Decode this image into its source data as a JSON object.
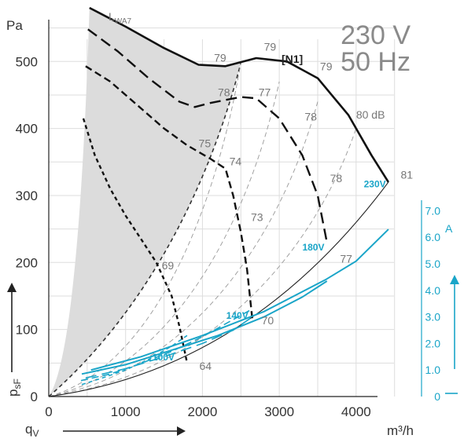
{
  "chart_data": {
    "type": "line",
    "title_voltage": "230 V",
    "title_frequency": "50 Hz",
    "xlabel": "q",
    "xlabel_sub": "V",
    "xunit": "m³/h",
    "ylabel": "p",
    "ylabel_sub": "sF",
    "yunit": "Pa",
    "y2unit": "A",
    "xlim": [
      0,
      4800
    ],
    "ylim": [
      0,
      580
    ],
    "y2lim": [
      0,
      7.0
    ],
    "x_ticks": [
      0,
      1000,
      2000,
      3000,
      4000
    ],
    "x_tick_labels": [
      "0",
      "1000",
      "2000",
      "3000",
      "4000"
    ],
    "y_ticks": [
      0,
      100,
      200,
      300,
      400,
      500
    ],
    "y_tick_labels": [
      "0",
      "100",
      "200",
      "300",
      "400",
      "500"
    ],
    "y2_ticks": [
      0,
      1,
      2,
      3,
      4,
      5,
      6,
      7
    ],
    "y2_tick_labels": [
      "0",
      "1.0",
      "2.0",
      "3.0",
      "4.0",
      "5.0",
      "6.0",
      "7.0"
    ],
    "grid": true,
    "lwa_label": "L",
    "lwa_label_sub": "WA7",
    "curve_label": "[N1]",
    "pressure_series": [
      {
        "name": "230V",
        "style": "solid",
        "x": [
          530,
          1000,
          1500,
          1950,
          2300,
          2700,
          3100,
          3500,
          3900,
          4200,
          4420
        ],
        "y": [
          580,
          552,
          520,
          495,
          493,
          505,
          500,
          475,
          420,
          360,
          320
        ]
      },
      {
        "name": "180V",
        "style": "dash-long",
        "x": [
          510,
          900,
          1300,
          1700,
          1900,
          2100,
          2500,
          2700,
          3000,
          3300,
          3500,
          3620
        ],
        "y": [
          548,
          515,
          475,
          440,
          432,
          438,
          447,
          445,
          415,
          360,
          300,
          230
        ]
      },
      {
        "name": "140V",
        "style": "dash-medium",
        "x": [
          480,
          800,
          1200,
          1500,
          1800,
          2100,
          2300,
          2400,
          2500,
          2580,
          2650
        ],
        "y": [
          493,
          470,
          430,
          400,
          375,
          355,
          340,
          300,
          245,
          190,
          115
        ]
      },
      {
        "name": "100V",
        "style": "dash-short",
        "x": [
          450,
          600,
          800,
          1000,
          1200,
          1400,
          1600,
          1700,
          1800
        ],
        "y": [
          415,
          360,
          310,
          270,
          235,
          200,
          150,
          105,
          50
        ]
      }
    ],
    "current_series": [
      {
        "name": "230V",
        "style": "solid",
        "x": [
          550,
          1200,
          2000,
          2800,
          3600,
          4000,
          4420
        ],
        "y": [
          1.0,
          1.5,
          2.3,
          3.2,
          4.4,
          5.1,
          6.3
        ]
      },
      {
        "name": "230V-2",
        "style": "solid",
        "x": [
          430,
          1000,
          1600,
          2200,
          2800,
          3300,
          3620
        ],
        "y": [
          0.85,
          1.2,
          1.75,
          2.3,
          3.0,
          3.75,
          4.35
        ]
      },
      {
        "name": "180V",
        "style": "dash-long",
        "x": [
          480,
          1000,
          1500,
          2000,
          2400,
          2650
        ],
        "y": [
          0.7,
          1.05,
          1.5,
          2.0,
          2.5,
          3.0
        ]
      },
      {
        "name": "140V",
        "style": "dash-medium",
        "x": [
          420,
          800,
          1200,
          1600,
          2000,
          2400,
          2650
        ],
        "y": [
          0.6,
          0.85,
          1.25,
          1.7,
          2.25,
          2.9,
          3.3
        ]
      },
      {
        "name": "100V",
        "style": "dash-short",
        "x": [
          430,
          700,
          1000,
          1300,
          1600,
          1800
        ],
        "y": [
          0.45,
          0.7,
          1.0,
          1.4,
          1.9,
          2.3
        ]
      }
    ],
    "system_curves_y_at_4420": [
      0,
      320
    ],
    "iso_db_labels": [
      {
        "text": "79",
        "x": 2150,
        "y": 500
      },
      {
        "text": "79",
        "x": 2800,
        "y": 516
      },
      {
        "text": "79",
        "x": 3530,
        "y": 487
      },
      {
        "text": "78",
        "x": 2200,
        "y": 448
      },
      {
        "text": "77",
        "x": 2730,
        "y": 448
      },
      {
        "text": "78",
        "x": 3330,
        "y": 412
      },
      {
        "text": "80 dB",
        "x": 4000,
        "y": 415
      },
      {
        "text": "75",
        "x": 1950,
        "y": 372
      },
      {
        "text": "74",
        "x": 2350,
        "y": 345
      },
      {
        "text": "78",
        "x": 3660,
        "y": 320
      },
      {
        "text": "81",
        "x": 4580,
        "y": 325
      },
      {
        "text": "73",
        "x": 2630,
        "y": 262
      },
      {
        "text": "69",
        "x": 1470,
        "y": 190
      },
      {
        "text": "77",
        "x": 3790,
        "y": 200
      },
      {
        "text": "70",
        "x": 2770,
        "y": 108
      },
      {
        "text": "64",
        "x": 1960,
        "y": 40
      }
    ],
    "voltage_labels": [
      {
        "text": "230V",
        "x": 4100,
        "y": 312
      },
      {
        "text": "180V",
        "x": 3300,
        "y": 218
      },
      {
        "text": "140V",
        "x": 2310,
        "y": 116
      },
      {
        "text": "100V",
        "x": 1350,
        "y": 54
      }
    ]
  }
}
